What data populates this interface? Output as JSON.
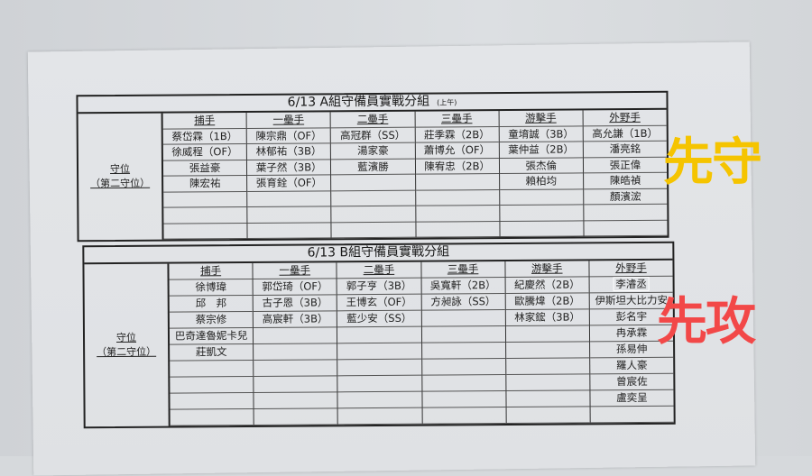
{
  "overlay_a": {
    "text": "先守",
    "color": "#f5c400"
  },
  "overlay_b": {
    "text": "先攻",
    "color": "#f24848"
  },
  "table_a": {
    "title": "6/13 A組守備員實戰分組",
    "note": "(上午)",
    "label": [
      "守位",
      "（第二守位）"
    ],
    "columns": [
      {
        "header": "捕手",
        "players": [
          "蔡岱霖（1B）",
          "徐威程（OF）",
          "張益豪",
          "陳宏祐",
          "",
          "",
          ""
        ]
      },
      {
        "header": "一壘手",
        "players": [
          "陳宗鼎（OF）",
          "林郁祐（3B）",
          "葉子然（3B）",
          "張育銓（OF）",
          "",
          "",
          ""
        ]
      },
      {
        "header": "二壘手",
        "players": [
          "高冠群（SS）",
          "湯家豪",
          "藍濱勝",
          "",
          "",
          "",
          ""
        ]
      },
      {
        "header": "三壘手",
        "players": [
          "莊季霖（2B）",
          "蕭博允（OF）",
          "陳宥忠（2B）",
          "",
          "",
          "",
          ""
        ]
      },
      {
        "header": "游擊手",
        "players": [
          "童堉誠（3B）",
          "葉仲益（2B）",
          "張杰倫",
          "賴柏均",
          "",
          "",
          ""
        ]
      },
      {
        "header": "外野手",
        "players": [
          "高允謙（1B）",
          "潘亮銘",
          "張正偉",
          "陳皓禎",
          "顏濱浤",
          "",
          ""
        ]
      }
    ]
  },
  "table_b": {
    "title": "6/13 B組守備員實戰分組",
    "label": [
      "守位",
      "（第二守位）"
    ],
    "columns": [
      {
        "header": "捕手",
        "players": [
          "徐博瑋",
          "邱　邦",
          "蔡宗修",
          "巴奇達魯妮卡兒",
          "莊凱文",
          "",
          "",
          "",
          ""
        ]
      },
      {
        "header": "一壘手",
        "players": [
          "郭岱琦（OF）",
          "古子恩（3B）",
          "高宸軒（3B）",
          "",
          "",
          "",
          "",
          "",
          ""
        ]
      },
      {
        "header": "二壘手",
        "players": [
          "郭子亨（3B）",
          "王博玄（OF）",
          "藍少安（SS）",
          "",
          "",
          "",
          "",
          "",
          ""
        ]
      },
      {
        "header": "三壘手",
        "players": [
          "吳寬軒（2B）",
          "方昶詠（SS）",
          "",
          "",
          "",
          "",
          "",
          "",
          ""
        ]
      },
      {
        "header": "游擊手",
        "players": [
          "紀慶然（2B）",
          "歐騰煒（2B）",
          "林家鋐（3B）",
          "",
          "",
          "",
          "",
          "",
          ""
        ]
      },
      {
        "header": "外野手",
        "players": [
          "李濬丞",
          "伊斯坦大比力安",
          "彭名宇",
          "冉承霖",
          "孫易伸",
          "羅人豪",
          "曾宸佐",
          "盧奕呈",
          ""
        ]
      }
    ]
  }
}
